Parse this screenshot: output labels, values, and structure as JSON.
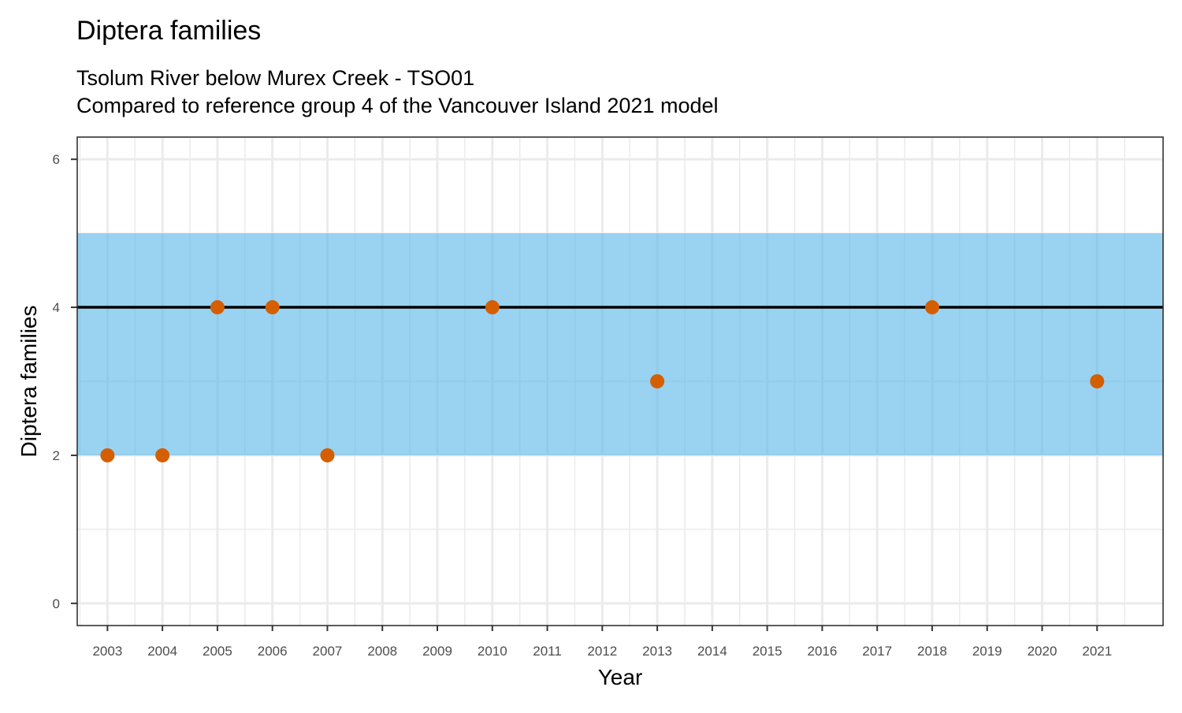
{
  "chart_data": {
    "type": "scatter",
    "title": "Diptera families",
    "subtitle_lines": [
      "Tsolum River below Murex Creek - TSO01",
      "Compared to reference group 4 of the Vancouver Island 2021 model"
    ],
    "xlabel": "Year",
    "ylabel": "Diptera families",
    "x_ticks": [
      2003,
      2004,
      2005,
      2006,
      2007,
      2008,
      2009,
      2010,
      2011,
      2012,
      2013,
      2014,
      2015,
      2016,
      2017,
      2018,
      2019,
      2020,
      2021
    ],
    "y_ticks": [
      0,
      2,
      4,
      6
    ],
    "xlim": [
      2002.45,
      2022.2
    ],
    "ylim": [
      -0.3,
      6.3
    ],
    "grid": true,
    "reference": {
      "band_low": 2,
      "band_high": 5,
      "line_value": 4
    },
    "points": [
      {
        "x": 2003,
        "y": 2
      },
      {
        "x": 2004,
        "y": 2
      },
      {
        "x": 2005,
        "y": 4
      },
      {
        "x": 2006,
        "y": 4
      },
      {
        "x": 2007,
        "y": 2
      },
      {
        "x": 2010,
        "y": 4
      },
      {
        "x": 2013,
        "y": 3
      },
      {
        "x": 2018,
        "y": 4
      },
      {
        "x": 2021,
        "y": 3
      }
    ],
    "colors": {
      "band": "#56B4E9",
      "point": "#D55E00",
      "line": "#000000",
      "grid": "#EBEBEB",
      "border": "#333333",
      "text": "#000000",
      "tick_text": "#4D4D4D"
    }
  }
}
